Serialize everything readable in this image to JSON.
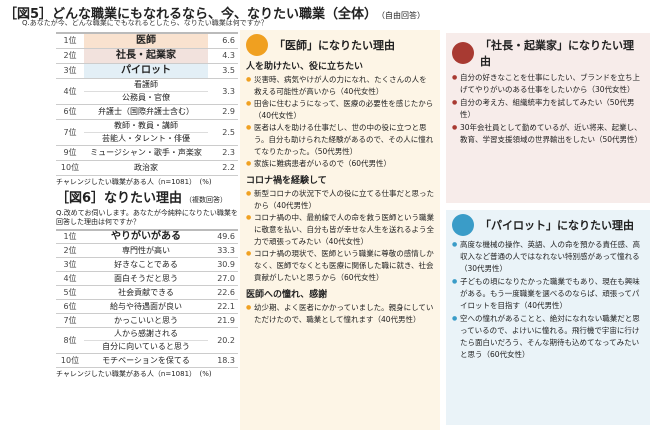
{
  "fig5": {
    "title": "［図5］どんな職業にもなれるなら、今、なりたい職業（全体）",
    "title_note": "（自由回答）",
    "question": "Q.あなたが今、どんな職業にでもなれるとしたら、なりたい職業は何ですか？",
    "rows": [
      {
        "rank": "1位",
        "items": [
          "医師"
        ],
        "value": "6.6",
        "highlight": "#f9e2cf"
      },
      {
        "rank": "2位",
        "items": [
          "社長・起業家"
        ],
        "value": "4.3",
        "highlight": "#f2e2dd"
      },
      {
        "rank": "3位",
        "items": [
          "パイロット"
        ],
        "value": "3.5",
        "highlight": "#e3eff6"
      },
      {
        "rank": "4位",
        "items": [
          "看護師",
          "公務員・官僚"
        ],
        "value": "3.3"
      },
      {
        "rank": "6位",
        "items": [
          "弁護士（国際弁護士含む）"
        ],
        "value": "2.9"
      },
      {
        "rank": "7位",
        "items": [
          "教師・教員・講師",
          "芸能人・タレント・俳優"
        ],
        "value": "2.5"
      },
      {
        "rank": "9位",
        "items": [
          "ミュージシャン・歌手・声楽家"
        ],
        "value": "2.3"
      },
      {
        "rank": "10位",
        "items": [
          "政治家"
        ],
        "value": "2.2"
      }
    ],
    "footnote": "チャレンジしたい職業がある人（n=1081）　(%)"
  },
  "fig6": {
    "title": "［図6］なりたい理由",
    "title_note": "（複数回答）",
    "question": "Q.改めてお伺いします。あなたが今純粋になりたい職業を回答した理由は何ですか？",
    "rows": [
      {
        "rank": "1位",
        "items": [
          "やりがいがある"
        ],
        "value": "49.6",
        "bold": true
      },
      {
        "rank": "2位",
        "items": [
          "専門性が高い"
        ],
        "value": "33.3"
      },
      {
        "rank": "3位",
        "items": [
          "好きなことである"
        ],
        "value": "30.9"
      },
      {
        "rank": "4位",
        "items": [
          "面白そうだと思う"
        ],
        "value": "27.0"
      },
      {
        "rank": "5位",
        "items": [
          "社会貢献できる"
        ],
        "value": "22.6"
      },
      {
        "rank": "6位",
        "items": [
          "給与や待遇面が良い"
        ],
        "value": "22.1"
      },
      {
        "rank": "7位",
        "items": [
          "かっこいいと思う"
        ],
        "value": "21.9"
      },
      {
        "rank": "8位",
        "items": [
          "人から感謝される",
          "自分に向いていると思う"
        ],
        "value": "20.2"
      },
      {
        "rank": "10位",
        "items": [
          "モチベーションを保てる"
        ],
        "value": "18.3"
      }
    ],
    "footnote": "チャレンジしたい職業がある人（n=1081）　(%)"
  },
  "doctor": {
    "title": "「医師」になりたい理由",
    "icon": "doctor-avatar-icon",
    "color": "#f0a020",
    "sections": [
      {
        "heading": "人を助けたい、役に立ちたい",
        "items": [
          "災害時、病気やけが人の力になれ、たくさんの人を救える可能性が高いから（40代女性）",
          "田舎に住むようになって、医療の必要性を感じたから（40代女性）",
          "医者は人を助ける仕事だし、世の中の役に立つと思う。自分も助けられた経験があるので、その人に憧れてなりたかった。（50代男性）",
          "家族に難病患者がいるので（60代男性）"
        ]
      },
      {
        "heading": "コロナ禍を経験して",
        "items": [
          "新型コロナの状況下で人の役に立てる仕事だと思ったから（40代男性）",
          "コロナ禍の中、最前線で人の命を救う医師という職業に敬意を払い、自分も皆が幸せな人生を送れるよう全力で頑張ってみたい（40代女性）",
          "コロナ禍の現状で、医師という職業に尊敬の感情しかなく、医師でなくとも医療に関係した職に就き、社会貢献がしたいと思うから（60代女性）"
        ]
      },
      {
        "heading": "医師への憧れ、感謝",
        "items": [
          "幼少期、よく医者にかかっていました。親身にしていただけたので、職業として憧れます（40代男性）"
        ]
      }
    ]
  },
  "ceo": {
    "title": "「社長・起業家」になりたい理由",
    "icon": "businessman-avatar-icon",
    "color": "#a83a32",
    "items": [
      "自分の好きなことを仕事にしたい、ブランドを立ち上げてやりがいのある仕事をしたいから（30代女性）",
      "自分の考え方、組織統率力を試してみたい（50代男性）",
      "30年会社員として勤めているが、近い将来、起業し、教育、学習支援領域の世界輸出をしたい（50代男性）"
    ]
  },
  "pilot": {
    "title": "「パイロット」になりたい理由",
    "icon": "pilot-avatar-icon",
    "color": "#3a9cc8",
    "items": [
      "高度な機械の操作、英語、人の命を預かる責任感、高収入など普通の人ではなれない特別感があって憧れる（30代男性）",
      "子どもの頃になりたかった職業でもあり、現在も興味がある。もう一度職業を選べるのならば、頑張ってパイロットを目指す（40代男性）",
      "空への憧れがあることと、絶対になれない職業だと思っているので、よけいに憧れる。飛行機で宇宙に行けたら面白いだろう、そんな期待も込めてなってみたいと思う（60代女性）"
    ]
  }
}
